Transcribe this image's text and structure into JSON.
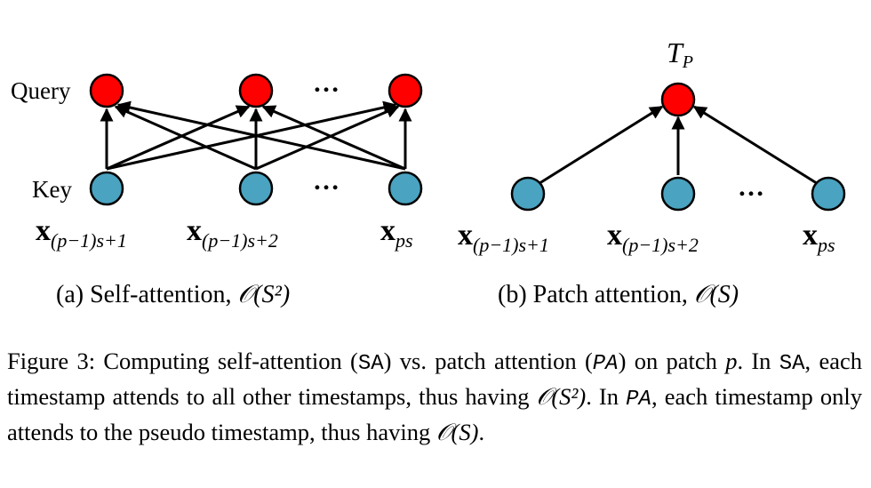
{
  "panel_a": {
    "query_label": "Query",
    "key_label": "Key",
    "dots": "…",
    "x_labels": [
      {
        "base": "x",
        "sub": "(p−1)s+1"
      },
      {
        "base": "x",
        "sub": "(p−1)s+2"
      },
      {
        "base": "x",
        "sub": "ps"
      }
    ],
    "caption_prefix": "(a) Self-attention, ",
    "complexity": "𝒪(S²)"
  },
  "panel_b": {
    "top_label_base": "T",
    "top_label_sub": "P",
    "dots": "…",
    "x_labels": [
      {
        "base": "x",
        "sub": "(p−1)s+1"
      },
      {
        "base": "x",
        "sub": "(p−1)s+2"
      },
      {
        "base": "x",
        "sub": "ps"
      }
    ],
    "caption_prefix": "(b) Patch attention, ",
    "complexity": "𝒪(S)"
  },
  "caption": {
    "p1": "Figure 3: Computing self-attention (",
    "sa": "SA",
    "p2": ") vs. patch attention (",
    "pa": "PA",
    "p3": ") on patch ",
    "p_var": "p",
    "p4": ". In ",
    "p5": ", each timestamp attends to all other timestamps, thus having ",
    "o_s2": "𝒪(S²)",
    "p6": ". In ",
    "p7": ", each timestamp only attends to the pseudo timestamp, thus having ",
    "o_s": "𝒪(S)",
    "p8": "."
  },
  "colors": {
    "query_node": "#ff0000",
    "key_node": "#4aa3c0",
    "stroke": "#000000"
  }
}
